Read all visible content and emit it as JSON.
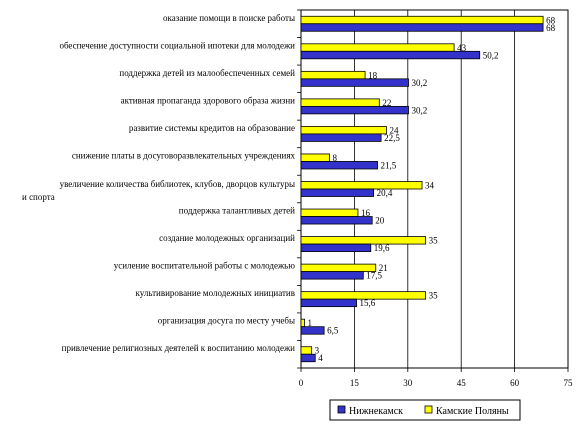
{
  "chart_data": {
    "type": "bar",
    "orientation": "horizontal",
    "categories": [
      "оказание помощи в поиске работы",
      "обеспечение доступности социальной ипотеки для молодежи",
      "поддержка детей из малообеспеченных семей",
      "активная пропаганда здорового образа жизни",
      "развитие системы кредитов на образование",
      "снижение платы в досуговоразвлекательных учреждениях",
      [
        "увеличение количества библиотек, клубов, дворцов культуры",
        "и спорта"
      ],
      "поддержка талантливых детей",
      "создание молодежных организаций",
      "усиление воспитательной работы с молодежью",
      "культивирование молодежных инициатив",
      "организация досуга по месту учебы",
      "привлечение религиозных деятелей к воспитанию молодежи"
    ],
    "series": [
      {
        "name": "Нижнекамск",
        "color": "#3333cc",
        "values": [
          68,
          50.2,
          30.2,
          30.2,
          22.5,
          21.5,
          20.4,
          20,
          19.6,
          17.5,
          15.6,
          6.5,
          4
        ],
        "labels": [
          "68",
          "50,2",
          "30,2",
          "30,2",
          "22,5",
          "21,5",
          "20,4",
          "20",
          "19,6",
          "17,5",
          "15,6",
          "6,5",
          "4"
        ]
      },
      {
        "name": "Камские Поляны",
        "color": "#ffff00",
        "values": [
          68,
          43,
          18,
          22,
          24,
          8,
          34,
          16,
          35,
          21,
          35,
          1,
          3
        ],
        "labels": [
          "68",
          "43",
          "18",
          "22",
          "24",
          "8",
          "34",
          "16",
          "35",
          "21",
          "35",
          "1",
          "3"
        ]
      }
    ],
    "xlim": [
      0,
      75
    ],
    "xticks": [
      "0",
      "15",
      "30",
      "45",
      "60",
      "75"
    ],
    "grid": "vertical",
    "legend": "bottom"
  }
}
